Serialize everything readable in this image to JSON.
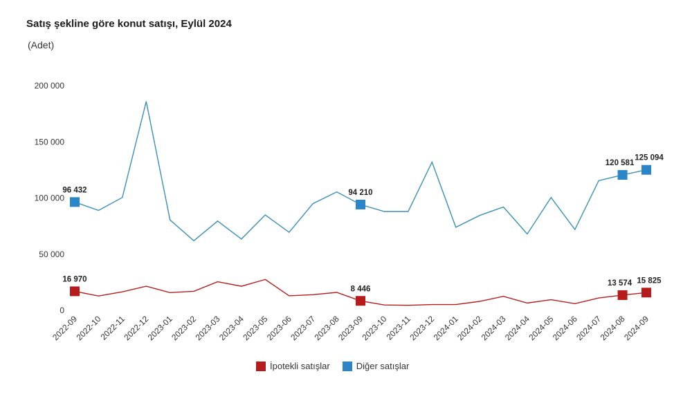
{
  "title": "Satış şekline göre konut satışı, Eylül 2024",
  "subtitle": "(Adet)",
  "colors": {
    "mortgage": "#b71c1c",
    "other": "#2a86c8",
    "other_line": "#3a8fb7"
  },
  "chart_data": {
    "type": "line",
    "title": "Satış şekline göre konut satışı, Eylül 2024",
    "ylabel": "(Adet)",
    "ylim": [
      0,
      200000
    ],
    "yticks": [
      0,
      50000,
      100000,
      150000,
      200000
    ],
    "ytick_labels": [
      "0",
      "50 000",
      "100 000",
      "150 000",
      "200 000"
    ],
    "categories": [
      "2022-09",
      "2022-10",
      "2022-11",
      "2022-12",
      "2023-01",
      "2023-02",
      "2023-03",
      "2023-04",
      "2023-05",
      "2023-06",
      "2023-07",
      "2023-08",
      "2023-09",
      "2023-10",
      "2023-11",
      "2023-12",
      "2024-01",
      "2024-02",
      "2024-03",
      "2024-04",
      "2024-05",
      "2024-06",
      "2024-07",
      "2024-08",
      "2024-09"
    ],
    "series": [
      {
        "name": "İpotekli satışlar",
        "color": "#b71c1c",
        "values": [
          16970,
          12800,
          16500,
          21500,
          15800,
          17000,
          25500,
          21500,
          27500,
          13000,
          14000,
          16000,
          8446,
          4800,
          4500,
          5200,
          5200,
          8000,
          12500,
          6500,
          9500,
          6000,
          11000,
          13574,
          15825
        ],
        "labels": [
          {
            "index": 0,
            "text": "16 970"
          },
          {
            "index": 12,
            "text": "8 446"
          },
          {
            "index": 23,
            "text": "13 574"
          },
          {
            "index": 24,
            "text": "15 825"
          }
        ]
      },
      {
        "name": "Diğer satışlar",
        "color": "#2a86c8",
        "values": [
          96432,
          89000,
          100500,
          186000,
          80500,
          62000,
          79500,
          63500,
          85000,
          69500,
          95000,
          105500,
          94210,
          88000,
          88000,
          132000,
          74000,
          84500,
          92000,
          68000,
          100500,
          72000,
          115500,
          120581,
          125094
        ],
        "labels": [
          {
            "index": 0,
            "text": "96 432"
          },
          {
            "index": 12,
            "text": "94 210"
          },
          {
            "index": 23,
            "text": "120 581"
          },
          {
            "index": 24,
            "text": "125 094"
          }
        ]
      }
    ],
    "legend": [
      "İpotekli satışlar",
      "Diğer satışlar"
    ],
    "legend_position": "bottom"
  }
}
